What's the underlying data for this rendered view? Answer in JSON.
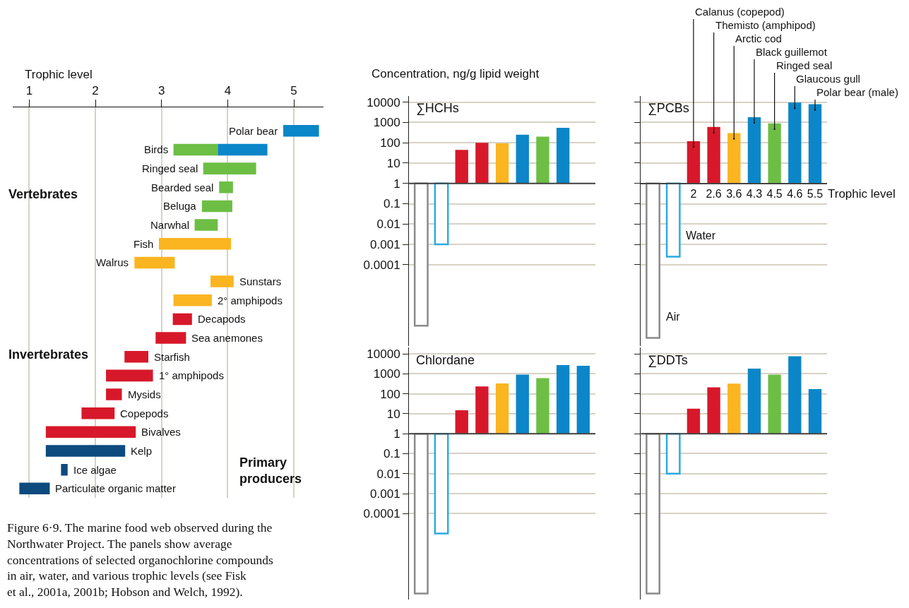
{
  "chart_data": [
    {
      "type": "bar",
      "orientation": "horizontal",
      "xlabel": "Trophic level",
      "xlim": [
        0.75,
        5.45
      ],
      "xticks": [
        1,
        2,
        3,
        4,
        5
      ],
      "grid": "x",
      "tick_labels": "x",
      "categories": [
        "Polar bear",
        "Birds",
        "Ringed seal",
        "Bearded seal",
        "Beluga",
        "Narwhal",
        "Fish",
        "Walrus",
        "Sunstars",
        "2° amphipods",
        "Decapods",
        "Sea anemones",
        "Starfish",
        "1° amphipods",
        "Mysids",
        "Copepods",
        "Bivalves",
        "Kelp",
        "Ice algae",
        "Particulate organic matter"
      ],
      "series": [
        {
          "values": [
            0.54,
            0.67,
            0.8,
            0.21,
            0.46,
            0.35,
            1.09,
            0.61,
            0.35,
            0.58,
            0.29,
            0.46,
            0.36,
            0.71,
            0.24,
            0.5,
            1.36,
            1.2,
            0.1,
            0.46
          ],
          "base": [
            4.84,
            3.18,
            3.63,
            3.87,
            3.61,
            3.5,
            2.96,
            2.59,
            3.74,
            3.18,
            3.17,
            2.91,
            2.44,
            2.16,
            2.16,
            1.79,
            1.25,
            1.25,
            1.48,
            0.85
          ],
          "colors": [
            "#0b86c8",
            "#6dbe45",
            "#6dbe45",
            "#6dbe45",
            "#6dbe45",
            "#6dbe45",
            "#fbb521",
            "#fbb521",
            "#fbb521",
            "#fbb521",
            "#d7182a",
            "#d7182a",
            "#d7182a",
            "#d7182a",
            "#d7182a",
            "#d7182a",
            "#d7182a",
            "#0d4a7e",
            "#0d4a7e",
            "#0d4a7e"
          ]
        },
        {
          "values": [
            null,
            0.75,
            null,
            null,
            null,
            null,
            null,
            null,
            null,
            null,
            null,
            null,
            null,
            null,
            null,
            null,
            null,
            null,
            null,
            null
          ],
          "base": [
            null,
            3.85,
            null,
            null,
            null,
            null,
            null,
            null,
            null,
            null,
            null,
            null,
            null,
            null,
            null,
            null,
            null,
            null,
            null,
            null
          ],
          "color": "#0b86c8"
        }
      ],
      "annotations": [
        "Vertebrates",
        "Invertebrates",
        "Primary producers",
        "Figure 6·9. The marine food web observed during the Northwater Project. The panels show average concentrations of selected organochlorine compounds in air, water, and various trophic levels (see Fisk et al., 2001a, 2001b; Hobson and Welch, 1992)."
      ]
    },
    {
      "type": "bar",
      "title": "∑HCHs",
      "ylabel": "Concentration, ng/g lipid weight",
      "log": "y",
      "grid": "y",
      "tick_labels": "y",
      "ylim": [
        1e-08,
        20000
      ],
      "yticks": [
        10000,
        1000,
        100,
        10,
        1,
        0.1,
        0.01,
        0.001,
        0.0001
      ],
      "categories": [
        null,
        null,
        null,
        null,
        null,
        null,
        null,
        null,
        null
      ],
      "ref_lines": [
        {
          "axis": "y",
          "value": 1,
          "color": "#444444"
        }
      ],
      "values": [
        -0.9999999,
        -0.999,
        44,
        99,
        94,
        249,
        199,
        549,
        null
      ],
      "base": [
        1,
        1,
        1,
        1,
        1,
        1,
        1,
        1,
        null
      ],
      "colors": [
        "#8a8a8a",
        "#29abe2",
        "#d7182a",
        "#d7182a",
        "#fbb521",
        "#0b86c8",
        "#6dbe45",
        "#0b86c8",
        "#0b86c8"
      ]
    },
    {
      "type": "bar",
      "title": "∑PCBs",
      "xlabel": "Trophic level",
      "log": "y",
      "grid": "y",
      "tick_labels": "x",
      "ylim": [
        1e-08,
        20000
      ],
      "yticks": [
        10000,
        1000,
        100,
        10,
        1,
        0.1,
        0.01,
        0.001,
        0.0001
      ],
      "categories": [
        null,
        null,
        "2",
        "2.6",
        "3.6",
        "4.3",
        "4.5",
        "4.6",
        "5.5"
      ],
      "values": [
        -0.999999975,
        -0.99975,
        119,
        599,
        299,
        1799,
        899,
        9499,
        7999
      ],
      "base": [
        1,
        1,
        1,
        1,
        1,
        1,
        1,
        1,
        1
      ],
      "colors": [
        "#8a8a8a",
        "#29abe2",
        "#d7182a",
        "#d7182a",
        "#fbb521",
        "#0b86c8",
        "#6dbe45",
        "#0b86c8",
        "#0b86c8"
      ],
      "annotations": [
        "Air",
        "Water",
        {
          "text": "Calanus (copepod)",
          "x": "2",
          "y": 120
        },
        {
          "text": "Themisto (amphipod)",
          "x": "2.6",
          "y": 600
        },
        {
          "text": "Arctic cod",
          "x": "3.6",
          "y": 300
        },
        {
          "text": "Black guillemot",
          "x": "4.3",
          "y": 1800
        },
        {
          "text": "Ringed seal",
          "x": "4.5",
          "y": 900
        },
        {
          "text": "Glaucous gull",
          "x": "4.6",
          "y": 9500
        },
        {
          "text": "Polar bear (male)",
          "x": "5.5",
          "y": 8000
        }
      ]
    },
    {
      "type": "bar",
      "title": "Chlordane",
      "log": "y",
      "grid": "y",
      "tick_labels": "y",
      "ylim": [
        5e-09,
        20000
      ],
      "yticks": [
        10000,
        1000,
        100,
        10,
        1,
        0.1,
        0.01,
        0.001,
        0.0001
      ],
      "categories": [
        null,
        null,
        null,
        null,
        null,
        null,
        null,
        null,
        null
      ],
      "ref_lines": [
        {
          "axis": "y",
          "value": 1,
          "color": "#444444"
        }
      ],
      "values": [
        -0.99999999,
        -0.99999,
        14,
        229,
        329,
        899,
        599,
        2699,
        2499
      ],
      "base": [
        1,
        1,
        1,
        1,
        1,
        1,
        1,
        1,
        1
      ],
      "colors": [
        "#8a8a8a",
        "#29abe2",
        "#d7182a",
        "#d7182a",
        "#fbb521",
        "#0b86c8",
        "#6dbe45",
        "#0b86c8",
        "#0b86c8"
      ]
    },
    {
      "type": "bar",
      "title": "∑DDTs",
      "log": "y",
      "grid": "y",
      "tick_labels": false,
      "ylim": [
        5e-09,
        20000
      ],
      "yticks": [
        10000,
        1000,
        100,
        10,
        1,
        0.1,
        0.01,
        0.001,
        0.0001
      ],
      "categories": [
        null,
        null,
        null,
        null,
        null,
        null,
        null,
        null,
        null
      ],
      "ref_lines": [
        {
          "axis": "y",
          "value": 1,
          "color": "#444444"
        }
      ],
      "values": [
        -0.99999999,
        -0.99,
        17,
        209,
        319,
        1799,
        899,
        7499,
        169
      ],
      "base": [
        1,
        1,
        1,
        1,
        1,
        1,
        1,
        1,
        1
      ],
      "colors": [
        "#8a8a8a",
        "#29abe2",
        "#d7182a",
        "#d7182a",
        "#fbb521",
        "#0b86c8",
        "#6dbe45",
        "#0b86c8",
        "#0b86c8"
      ]
    }
  ]
}
